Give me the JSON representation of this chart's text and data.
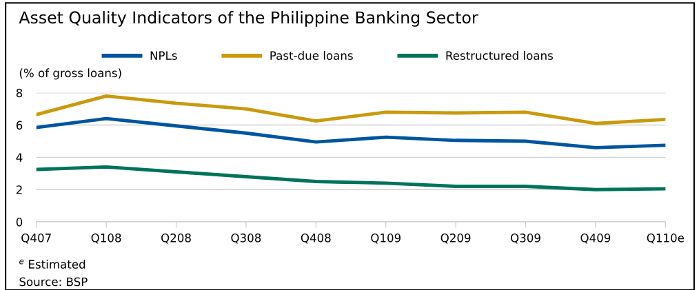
{
  "chart_data": {
    "type": "line",
    "title": "Asset Quality Indicators of the Philippine Banking Sector",
    "ylabel": "(% of gross loans)",
    "categories": [
      "Q407",
      "Q108",
      "Q208",
      "Q308",
      "Q408",
      "Q109",
      "Q209",
      "Q309",
      "Q409",
      "Q110e"
    ],
    "series": [
      {
        "name": "NPLs",
        "color": "#0055a0",
        "values": [
          5.85,
          6.4,
          5.95,
          5.5,
          4.95,
          5.25,
          5.05,
          5.0,
          4.6,
          4.75
        ]
      },
      {
        "name": "Past-due loans",
        "color": "#c99a0e",
        "values": [
          6.65,
          7.8,
          7.35,
          7.0,
          6.25,
          6.8,
          6.75,
          6.8,
          6.1,
          6.35
        ]
      },
      {
        "name": "Restructured loans",
        "color": "#00735c",
        "values": [
          3.25,
          3.4,
          3.1,
          2.8,
          2.5,
          2.4,
          2.2,
          2.2,
          2.0,
          2.05
        ]
      }
    ],
    "ylim": [
      0,
      8
    ],
    "yticks": [
      0,
      2,
      4,
      6,
      8
    ],
    "grid": "y",
    "legend": "top",
    "marker": "none",
    "line_style": "solid",
    "annotations": [
      "$^{e}$ Estimated",
      "Source: BSP"
    ]
  }
}
